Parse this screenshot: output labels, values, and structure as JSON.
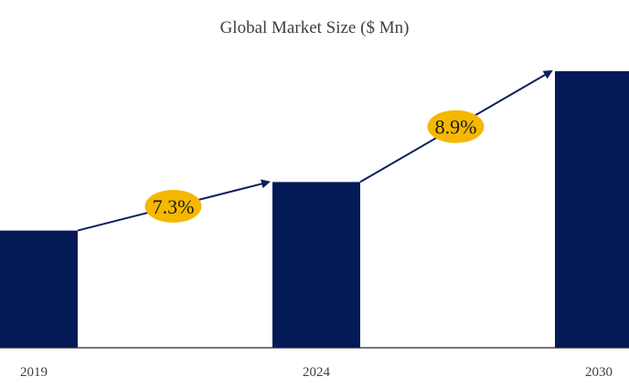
{
  "chart_data": {
    "type": "bar",
    "title": "Global Market Size ($ Mn)",
    "categories": [
      "2019",
      "2024",
      "2030"
    ],
    "values": [
      128,
      181,
      302
    ],
    "ylim": [
      0,
      310
    ],
    "grid": false,
    "legend": "none",
    "annotations": [
      {
        "label": "7.3%",
        "from": "2019",
        "to": "2024"
      },
      {
        "label": "8.9%",
        "from": "2024",
        "to": "2030"
      }
    ]
  },
  "colors": {
    "bar": "#041a57",
    "arrow": "#0d1f5c",
    "badge": "#f5b800",
    "axis": "#262626"
  }
}
